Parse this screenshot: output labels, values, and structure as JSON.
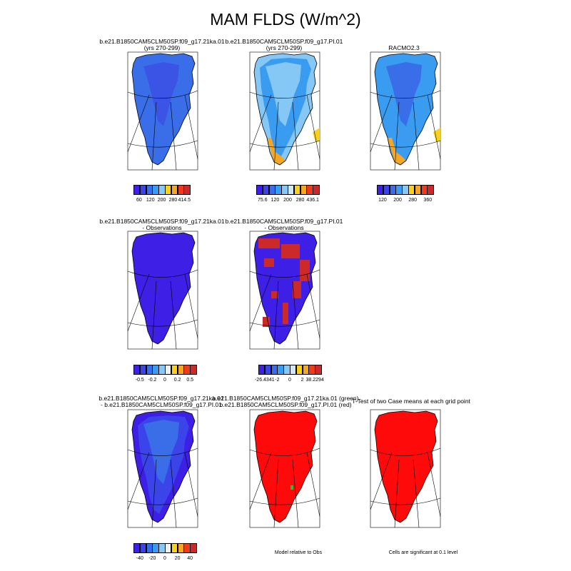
{
  "figure": {
    "title": "MAM FLDS (W/m^2)"
  },
  "panels": [
    {
      "id": "p1",
      "title_lines": [
        "b.e21.B1850CAM5CLM50SP.f09_g17.21ka.01",
        "(yrs 270-299)"
      ],
      "fill": "blue_clim"
    },
    {
      "id": "p2",
      "title_lines": [
        "b.e21.B1850CAM5CLM50SP.f09_g17.PI.01",
        "(yrs 270-299)"
      ],
      "fill": "light_clim"
    },
    {
      "id": "p3",
      "title_lines": [
        "RACMO2.3"
      ],
      "fill": "racmo"
    },
    {
      "id": "p4",
      "title_lines": [
        "b.e21.B1850CAM5CLM50SP.f09_g17.21ka.01",
        "- Observations"
      ],
      "fill": "deep_blue"
    },
    {
      "id": "p5",
      "title_lines": [
        "b.e21.B1850CAM5CLM50SP.f09_g17.PI.01",
        "- Observations"
      ],
      "fill": "mixed"
    },
    {
      "id": "p7",
      "title_lines": [
        "b.e21.B1850CAM5CLM50SP.f09_g17.21ka.01",
        "- b.e21.B1850CAM5CLM50SP.f09_g17.PI.01"
      ],
      "fill": "diff_blue"
    },
    {
      "id": "p8",
      "title_lines": [
        "b.e21.B1850CAM5CLM50SP.f09_g17.21ka.01 (green)",
        "b.e21.B1850CAM5CLM50SP.f09_g17.PI.01 (red)"
      ],
      "fill": "red"
    },
    {
      "id": "p9",
      "title_lines": [
        "T-Test of two Case means at each grid point"
      ],
      "fill": "red"
    }
  ],
  "colorbars": [
    {
      "id": "cb1",
      "colors": [
        "#3d1fe6",
        "#3b44e8",
        "#3a6ee8",
        "#3a9cf0",
        "#86c8f5",
        "#f6d21c",
        "#f5a623",
        "#ee3a1d",
        "#cc2a2a"
      ],
      "labels": [
        "60",
        "120",
        "200",
        "280",
        "414.5"
      ]
    },
    {
      "id": "cb2",
      "colors": [
        "#3d1fe6",
        "#3b44e8",
        "#3a6ee8",
        "#3a9cf0",
        "#86c8f5",
        "#cfe8f7",
        "#f6d21c",
        "#f5a623",
        "#ee3a1d",
        "#cc2a2a"
      ],
      "labels": [
        "75.6",
        "120",
        "200",
        "280",
        "436.1"
      ]
    },
    {
      "id": "cb3",
      "colors": [
        "#3d1fe6",
        "#3b44e8",
        "#3a6ee8",
        "#3a9cf0",
        "#86c8f5",
        "#f6d21c",
        "#f5a623",
        "#ee3a1d",
        "#cc2a2a"
      ],
      "labels": [
        "120",
        "200",
        "280",
        "360"
      ]
    },
    {
      "id": "cb4",
      "colors": [
        "#3d1fe6",
        "#3b44e8",
        "#3a6ee8",
        "#3a9cf0",
        "#86c8f5",
        "#f0f0f0",
        "#f6d21c",
        "#f5a623",
        "#ee3a1d",
        "#cc2a2a"
      ],
      "labels": [
        "-0.5",
        "-0.2",
        "0",
        "0.2",
        "0.5"
      ]
    },
    {
      "id": "cb5",
      "colors": [
        "#3d1fe6",
        "#3b44e8",
        "#3a6ee8",
        "#3a9cf0",
        "#86c8f5",
        "#cfe8f7",
        "#f6d21c",
        "#f5a623",
        "#ee3a1d",
        "#cc2a2a"
      ],
      "labels": [
        "-26.4341",
        "-2",
        "0",
        "2",
        "38.2294"
      ]
    },
    {
      "id": "cb7",
      "colors": [
        "#3d1fe6",
        "#3b44e8",
        "#3a6ee8",
        "#3a9cf0",
        "#86c8f5",
        "#f0f0f0",
        "#f6d21c",
        "#f5a623",
        "#ee3a1d",
        "#cc2a2a"
      ],
      "labels": [
        "-40",
        "-20",
        "0",
        "20",
        "40"
      ]
    }
  ],
  "notes": {
    "model_relative": "Model relative to Obs",
    "significance": "Cells are significant at 0.1 level"
  },
  "palette": {
    "blue_dark": "#3d1fe6",
    "blue_mid": "#3a6ee8",
    "blue_light": "#3a9cf0",
    "blue_pale": "#86c8f5",
    "yellow": "#f6d21c",
    "orange": "#f5a623",
    "red": "#ff0a0a",
    "green": "#22c03a"
  }
}
